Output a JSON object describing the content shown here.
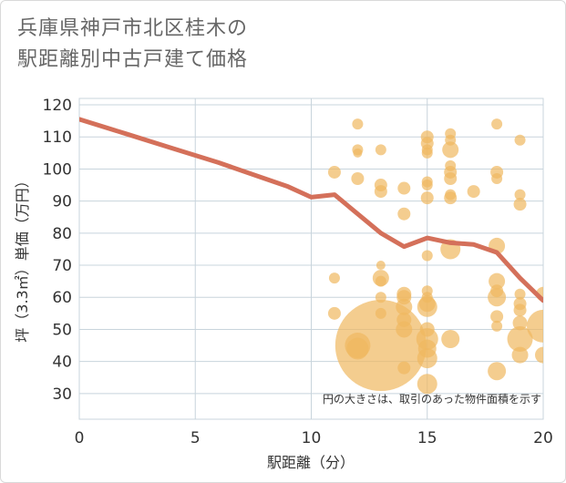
{
  "title_line1": "兵庫県神戸市北区桂木の",
  "title_line2": "駅距離別中古戸建て価格",
  "chart_data": {
    "type": "scatter",
    "xlabel": "駅距離（分）",
    "ylabel": "坪（3.3㎡）単価（万円）",
    "xlim": [
      0,
      20
    ],
    "ylim": [
      22,
      122
    ],
    "xticks": [
      0,
      5,
      10,
      15,
      20
    ],
    "yticks": [
      30,
      40,
      50,
      60,
      70,
      80,
      90,
      100,
      110,
      120
    ],
    "note": "円の大きさは、取引のあった物件面積を示す",
    "colors": {
      "bubble": "#f0b860",
      "line": "#d4705a",
      "grid": "#c8d4dc"
    },
    "line": {
      "x": [
        0,
        2,
        4,
        6,
        8,
        9,
        10,
        11,
        12,
        13,
        14,
        15,
        16,
        17,
        18,
        19,
        20
      ],
      "y": [
        115.5,
        111,
        106.5,
        102,
        97,
        94.5,
        91.2,
        92,
        86,
        80,
        75.8,
        78.5,
        77,
        76.5,
        74,
        66,
        59
      ]
    },
    "points": [
      {
        "x": 11,
        "y": 99,
        "s": 7
      },
      {
        "x": 11,
        "y": 66,
        "s": 6
      },
      {
        "x": 11,
        "y": 55,
        "s": 7
      },
      {
        "x": 12,
        "y": 114,
        "s": 6
      },
      {
        "x": 12,
        "y": 106,
        "s": 6
      },
      {
        "x": 12,
        "y": 105,
        "s": 5
      },
      {
        "x": 12,
        "y": 97,
        "s": 7
      },
      {
        "x": 12,
        "y": 44,
        "s": 12
      },
      {
        "x": 12,
        "y": 45,
        "s": 14
      },
      {
        "x": 13,
        "y": 106,
        "s": 6
      },
      {
        "x": 13,
        "y": 95,
        "s": 7
      },
      {
        "x": 13,
        "y": 93,
        "s": 7
      },
      {
        "x": 13,
        "y": 70,
        "s": 5
      },
      {
        "x": 13,
        "y": 66,
        "s": 9
      },
      {
        "x": 13,
        "y": 65,
        "s": 6
      },
      {
        "x": 13,
        "y": 60,
        "s": 6
      },
      {
        "x": 13,
        "y": 55,
        "s": 6
      },
      {
        "x": 13,
        "y": 45,
        "s": 50
      },
      {
        "x": 14,
        "y": 94,
        "s": 7
      },
      {
        "x": 14,
        "y": 86,
        "s": 7
      },
      {
        "x": 14,
        "y": 61,
        "s": 8
      },
      {
        "x": 14,
        "y": 60,
        "s": 8
      },
      {
        "x": 14,
        "y": 57,
        "s": 9
      },
      {
        "x": 14,
        "y": 53,
        "s": 8
      },
      {
        "x": 14,
        "y": 50,
        "s": 9
      },
      {
        "x": 14,
        "y": 38,
        "s": 7
      },
      {
        "x": 15,
        "y": 110,
        "s": 7
      },
      {
        "x": 15,
        "y": 108,
        "s": 7
      },
      {
        "x": 15,
        "y": 106,
        "s": 6
      },
      {
        "x": 15,
        "y": 105,
        "s": 6
      },
      {
        "x": 15,
        "y": 96,
        "s": 6
      },
      {
        "x": 15,
        "y": 95,
        "s": 6
      },
      {
        "x": 15,
        "y": 91,
        "s": 7
      },
      {
        "x": 15,
        "y": 73,
        "s": 6
      },
      {
        "x": 15,
        "y": 62,
        "s": 6
      },
      {
        "x": 15,
        "y": 60,
        "s": 6
      },
      {
        "x": 15,
        "y": 58,
        "s": 9
      },
      {
        "x": 15,
        "y": 57,
        "s": 11
      },
      {
        "x": 15,
        "y": 50,
        "s": 8
      },
      {
        "x": 15,
        "y": 47,
        "s": 12
      },
      {
        "x": 15,
        "y": 44,
        "s": 10
      },
      {
        "x": 15,
        "y": 41,
        "s": 11
      },
      {
        "x": 15,
        "y": 33,
        "s": 11
      },
      {
        "x": 16,
        "y": 111,
        "s": 6
      },
      {
        "x": 16,
        "y": 109,
        "s": 6
      },
      {
        "x": 16,
        "y": 106,
        "s": 9
      },
      {
        "x": 16,
        "y": 101,
        "s": 6
      },
      {
        "x": 16,
        "y": 99,
        "s": 7
      },
      {
        "x": 16,
        "y": 97,
        "s": 7
      },
      {
        "x": 16,
        "y": 92,
        "s": 6
      },
      {
        "x": 16,
        "y": 91,
        "s": 7
      },
      {
        "x": 16,
        "y": 75,
        "s": 11
      },
      {
        "x": 16,
        "y": 47,
        "s": 10
      },
      {
        "x": 17,
        "y": 93,
        "s": 7
      },
      {
        "x": 18,
        "y": 114,
        "s": 6
      },
      {
        "x": 18,
        "y": 99,
        "s": 7
      },
      {
        "x": 18,
        "y": 97,
        "s": 6
      },
      {
        "x": 18,
        "y": 76,
        "s": 9
      },
      {
        "x": 18,
        "y": 65,
        "s": 9
      },
      {
        "x": 18,
        "y": 62,
        "s": 7
      },
      {
        "x": 18,
        "y": 60,
        "s": 10
      },
      {
        "x": 18,
        "y": 54,
        "s": 7
      },
      {
        "x": 18,
        "y": 51,
        "s": 6
      },
      {
        "x": 18,
        "y": 37,
        "s": 10
      },
      {
        "x": 19,
        "y": 109,
        "s": 6
      },
      {
        "x": 19,
        "y": 92,
        "s": 6
      },
      {
        "x": 19,
        "y": 89,
        "s": 7
      },
      {
        "x": 19,
        "y": 61,
        "s": 6
      },
      {
        "x": 19,
        "y": 58,
        "s": 7
      },
      {
        "x": 19,
        "y": 56,
        "s": 7
      },
      {
        "x": 19,
        "y": 52,
        "s": 8
      },
      {
        "x": 19,
        "y": 47,
        "s": 14
      },
      {
        "x": 19,
        "y": 42,
        "s": 9
      },
      {
        "x": 20,
        "y": 61,
        "s": 8
      },
      {
        "x": 20,
        "y": 51,
        "s": 18
      },
      {
        "x": 20,
        "y": 42,
        "s": 9
      }
    ]
  }
}
